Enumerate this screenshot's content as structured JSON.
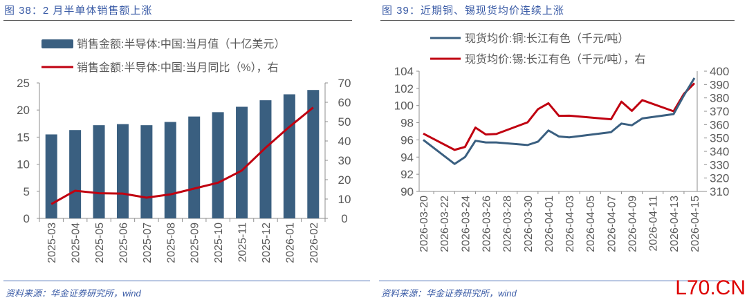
{
  "left": {
    "title": "图 38：2 月半单体销售额上涨",
    "source": "资料来源：华金证券研究所，wind"
  },
  "right": {
    "title": "图 39：近期铜、锡现货均价连续上涨",
    "source": "资料来源：华金证券研究所，wind"
  },
  "watermark": "L70.CN",
  "colors": {
    "bar": "#3a5f80",
    "red": "#c00010",
    "copper": "#3a5f80",
    "title": "#3a5ba6",
    "axis_text": "#595959"
  },
  "chart_data": [
    {
      "type": "bar+line",
      "categories": [
        "2025-03",
        "2025-04",
        "2025-05",
        "2025-06",
        "2025-07",
        "2025-08",
        "2025-09",
        "2025-10",
        "2025-11",
        "2025-12",
        "2026-01",
        "2026-02"
      ],
      "series": [
        {
          "name": "销售金额:半导体:中国:当月值（十亿美元）",
          "type": "bar",
          "axis": "left",
          "values": [
            15.5,
            16.3,
            17.2,
            17.4,
            17.2,
            17.8,
            18.8,
            19.6,
            20.6,
            21.8,
            22.9,
            23.7
          ]
        },
        {
          "name": "销售金额:半导体:中国:当月同比（%），右",
          "type": "line",
          "axis": "right",
          "values": [
            7.4,
            14.3,
            13.0,
            12.8,
            10.7,
            12.4,
            15.4,
            18.4,
            24.7,
            36.5,
            47.3,
            57.3
          ]
        }
      ],
      "ylim": [
        0,
        25
      ],
      "yticks": [
        0,
        5,
        10,
        15,
        20,
        25
      ],
      "y2lim": [
        0,
        70
      ],
      "y2ticks": [
        0,
        10,
        20,
        30,
        40,
        50,
        60,
        70
      ],
      "legend": "top",
      "grid": false
    },
    {
      "type": "line",
      "x": [
        "2026-03-20",
        "2026-03-23",
        "2026-03-24",
        "2026-03-25",
        "2026-03-26",
        "2026-03-27",
        "2026-03-30",
        "2026-03-31",
        "2026-04-01",
        "2026-04-02",
        "2026-04-03",
        "2026-04-07",
        "2026-04-08",
        "2026-04-09",
        "2026-04-10",
        "2026-04-13",
        "2026-04-14",
        "2026-04-15"
      ],
      "xticks": [
        "2026-03-20",
        "2026-03-22",
        "2026-03-24",
        "2026-03-26",
        "2026-03-28",
        "2026-03-30",
        "2026-04-01",
        "2026-04-03",
        "2026-04-05",
        "2026-04-07",
        "2026-04-09",
        "2026-04-11",
        "2026-04-13",
        "2026-04-15"
      ],
      "series": [
        {
          "name": "现货均价:铜:长江有色（千元/吨）",
          "axis": "left",
          "values": [
            96.0,
            93.2,
            94.0,
            95.9,
            95.7,
            95.7,
            95.4,
            95.8,
            97.1,
            96.4,
            96.3,
            96.9,
            97.9,
            97.7,
            98.5,
            99.0,
            101.2,
            103.2
          ]
        },
        {
          "name": "现货均价:锡:长江有色（千元/吨），右",
          "axis": "right",
          "values": [
            353.3,
            341.1,
            343.3,
            357.8,
            352.6,
            353.0,
            361.7,
            371.6,
            376.0,
            366.6,
            366.7,
            364.0,
            377.2,
            370.3,
            378.3,
            370.0,
            383.1,
            391.0
          ]
        }
      ],
      "ylim": [
        90,
        104
      ],
      "yticks": [
        90,
        92,
        94,
        96,
        98,
        100,
        102,
        104
      ],
      "y2lim": [
        310,
        400
      ],
      "y2ticks": [
        310,
        320,
        330,
        340,
        350,
        360,
        370,
        380,
        390,
        400
      ],
      "legend": "top",
      "grid": false
    }
  ]
}
